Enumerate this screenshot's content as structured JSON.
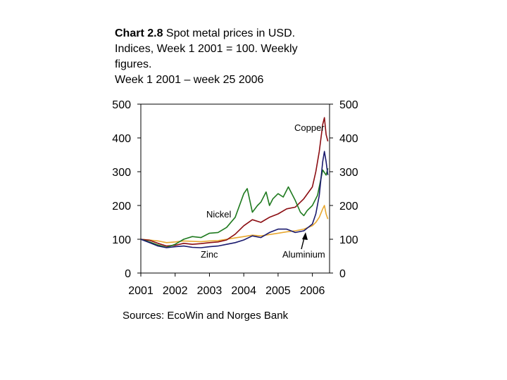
{
  "title": {
    "bold": "Chart 2.8",
    "line1": "Spot metal prices in USD.",
    "line2": "Indices, Week 1 2001 = 100. Weekly",
    "line3": "figures.",
    "line4": "Week 1 2001 – week 25 2006"
  },
  "source": "Sources: EcoWin and Norges Bank",
  "colors": {
    "copper": "#8b0d12",
    "nickel": "#1f7a1f",
    "aluminium": "#1a1a6e",
    "zinc": "#e8a830",
    "axis": "#000000"
  },
  "chart_data": {
    "type": "line",
    "title": "Spot metal prices in USD. Indices, Week 1 2001 = 100. Weekly figures.",
    "xlabel": "",
    "ylabel": "",
    "xlim": [
      2001,
      2006.5
    ],
    "ylim": [
      0,
      500
    ],
    "y_ticks": [
      "0",
      "100",
      "200",
      "300",
      "400",
      "500"
    ],
    "y_tick_values": [
      0,
      100,
      200,
      300,
      400,
      500
    ],
    "x_ticks": [
      "2001",
      "2002",
      "2003",
      "2004",
      "2005",
      "2006"
    ],
    "x_tick_values": [
      2001,
      2002,
      2003,
      2004,
      2005,
      2006
    ],
    "annotations": {
      "copper": "Copper",
      "nickel": "Nickel",
      "zinc": "Zinc",
      "aluminium": "Aluminium"
    },
    "series": [
      {
        "name": "Copper",
        "x": [
          2001.0,
          2001.25,
          2001.5,
          2001.75,
          2002.0,
          2002.25,
          2002.5,
          2002.75,
          2003.0,
          2003.25,
          2003.5,
          2003.75,
          2004.0,
          2004.25,
          2004.5,
          2004.75,
          2005.0,
          2005.25,
          2005.5,
          2005.75,
          2006.0,
          2006.1,
          2006.2,
          2006.3,
          2006.35,
          2006.4,
          2006.45
        ],
        "values": [
          100,
          97,
          88,
          80,
          82,
          88,
          85,
          87,
          90,
          92,
          98,
          115,
          140,
          158,
          150,
          165,
          175,
          190,
          195,
          220,
          255,
          300,
          360,
          440,
          460,
          410,
          390
        ]
      },
      {
        "name": "Nickel",
        "x": [
          2001.0,
          2001.25,
          2001.5,
          2001.75,
          2002.0,
          2002.25,
          2002.5,
          2002.75,
          2003.0,
          2003.25,
          2003.5,
          2003.75,
          2004.0,
          2004.1,
          2004.25,
          2004.4,
          2004.5,
          2004.65,
          2004.75,
          2004.85,
          2005.0,
          2005.15,
          2005.3,
          2005.5,
          2005.65,
          2005.75,
          2005.85,
          2006.0,
          2006.15,
          2006.3,
          2006.4,
          2006.45
        ],
        "values": [
          100,
          92,
          83,
          76,
          85,
          100,
          108,
          105,
          118,
          120,
          135,
          165,
          235,
          250,
          180,
          200,
          210,
          240,
          200,
          220,
          235,
          225,
          255,
          215,
          180,
          170,
          185,
          200,
          230,
          305,
          290,
          310
        ]
      },
      {
        "name": "Aluminium",
        "x": [
          2001.0,
          2001.25,
          2001.5,
          2001.75,
          2002.0,
          2002.25,
          2002.5,
          2002.75,
          2003.0,
          2003.25,
          2003.5,
          2003.75,
          2004.0,
          2004.25,
          2004.5,
          2004.75,
          2005.0,
          2005.25,
          2005.5,
          2005.75,
          2006.0,
          2006.1,
          2006.2,
          2006.3,
          2006.35,
          2006.4,
          2006.45
        ],
        "values": [
          100,
          90,
          80,
          75,
          78,
          80,
          76,
          75,
          78,
          80,
          85,
          90,
          98,
          110,
          105,
          120,
          130,
          130,
          120,
          125,
          145,
          175,
          230,
          330,
          360,
          330,
          290
        ]
      },
      {
        "name": "Zinc",
        "x": [
          2001.0,
          2001.25,
          2001.5,
          2001.75,
          2002.0,
          2002.25,
          2002.5,
          2002.75,
          2003.0,
          2003.25,
          2003.5,
          2003.75,
          2004.0,
          2004.25,
          2004.5,
          2004.75,
          2005.0,
          2005.25,
          2005.5,
          2005.75,
          2006.0,
          2006.1,
          2006.2,
          2006.3,
          2006.35,
          2006.4,
          2006.45
        ],
        "values": [
          100,
          98,
          95,
          90,
          92,
          95,
          94,
          93,
          95,
          96,
          100,
          104,
          108,
          112,
          110,
          114,
          118,
          122,
          125,
          130,
          140,
          150,
          165,
          190,
          200,
          175,
          160
        ]
      }
    ]
  }
}
